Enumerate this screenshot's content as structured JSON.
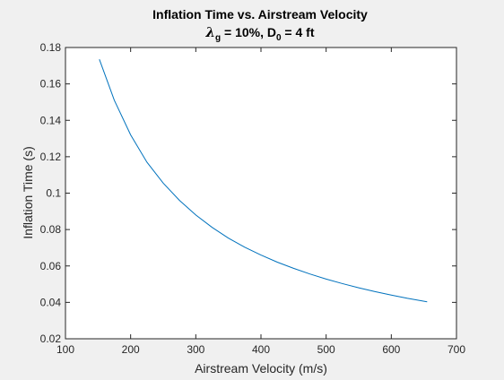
{
  "chart_data": {
    "type": "line",
    "title": "Inflation Time vs. Airstream Velocity",
    "subtitle": {
      "lambda_symbol": "λ",
      "lambda_sub": "g",
      "lambda_value": " = 10%, D",
      "d_sub": "0",
      "d_value": " = 4 ft"
    },
    "xlabel": "Airstream Velocity (m/s)",
    "ylabel": "Inflation Time (s)",
    "xlim": [
      100,
      700
    ],
    "ylim": [
      0.02,
      0.18
    ],
    "xticks": [
      100,
      200,
      300,
      400,
      500,
      600,
      700
    ],
    "xtick_labels": [
      "100",
      "200",
      "300",
      "400",
      "500",
      "600",
      "700"
    ],
    "yticks": [
      0.02,
      0.04,
      0.06,
      0.08,
      0.1,
      0.12,
      0.14,
      0.16,
      0.18
    ],
    "ytick_labels": [
      "0.02",
      "0.04",
      "0.06",
      "0.08",
      "0.1",
      "0.12",
      "0.14",
      "0.16",
      "0.18"
    ],
    "grid": false,
    "legend": "none",
    "line_color": "#0072bd",
    "series": [
      {
        "x": [
          152,
          175,
          200,
          225,
          250,
          275,
          300,
          325,
          350,
          375,
          400,
          425,
          450,
          475,
          500,
          525,
          550,
          575,
          600,
          625,
          655
        ],
        "values": [
          0.1735,
          0.151,
          0.132,
          0.117,
          0.1055,
          0.096,
          0.088,
          0.0812,
          0.0753,
          0.0703,
          0.066,
          0.0621,
          0.0587,
          0.0556,
          0.0528,
          0.0503,
          0.048,
          0.0459,
          0.044,
          0.0422,
          0.0403
        ]
      }
    ]
  }
}
